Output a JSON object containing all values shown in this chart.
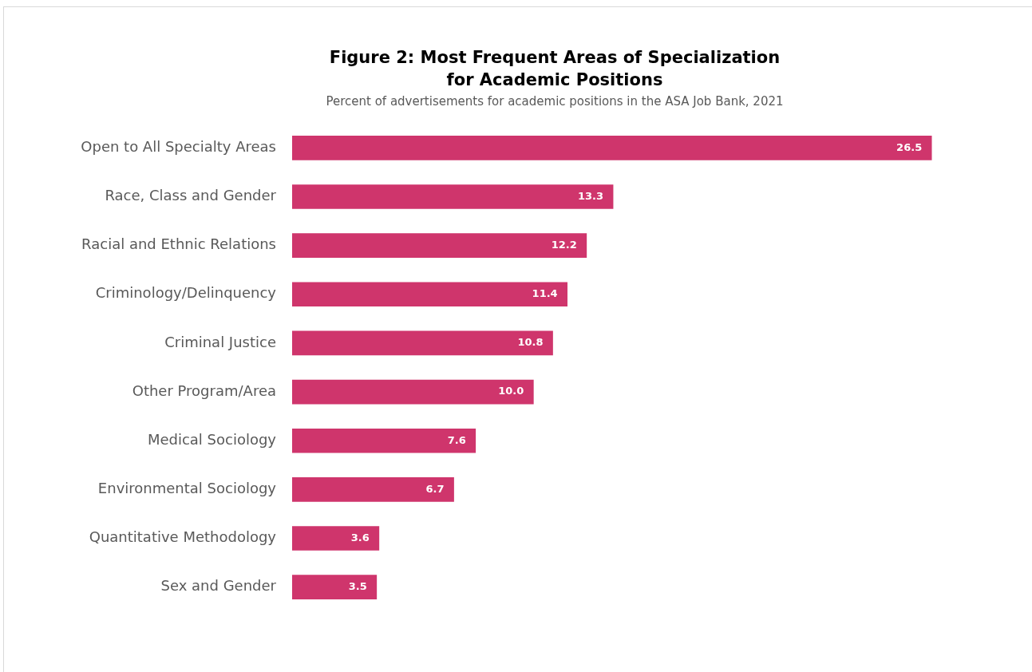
{
  "chart_data": {
    "type": "bar",
    "orientation": "horizontal",
    "title": "Figure 2: Most Frequent Areas of Specialization for Academic Positions",
    "subtitle": "Percent of advertisements for academic positions in the ASA Job Bank, 2021",
    "categories": [
      "Open to All Specialty Areas",
      "Race, Class and Gender",
      "Racial and Ethnic Relations",
      "Criminology/Delinquency",
      "Criminal Justice",
      "Other Program/Area",
      "Medical Sociology",
      "Environmental Sociology",
      "Quantitative Methodology",
      "Sex and Gender"
    ],
    "values": [
      26.5,
      13.3,
      12.2,
      11.4,
      10.8,
      10.0,
      7.6,
      6.7,
      3.6,
      3.5
    ],
    "value_labels": [
      "26.5",
      "13.3",
      "12.2",
      "11.4",
      "10.8",
      "10.0",
      "7.6",
      "6.7",
      "3.6",
      "3.5"
    ],
    "color": "#cf356c",
    "legend": false
  }
}
